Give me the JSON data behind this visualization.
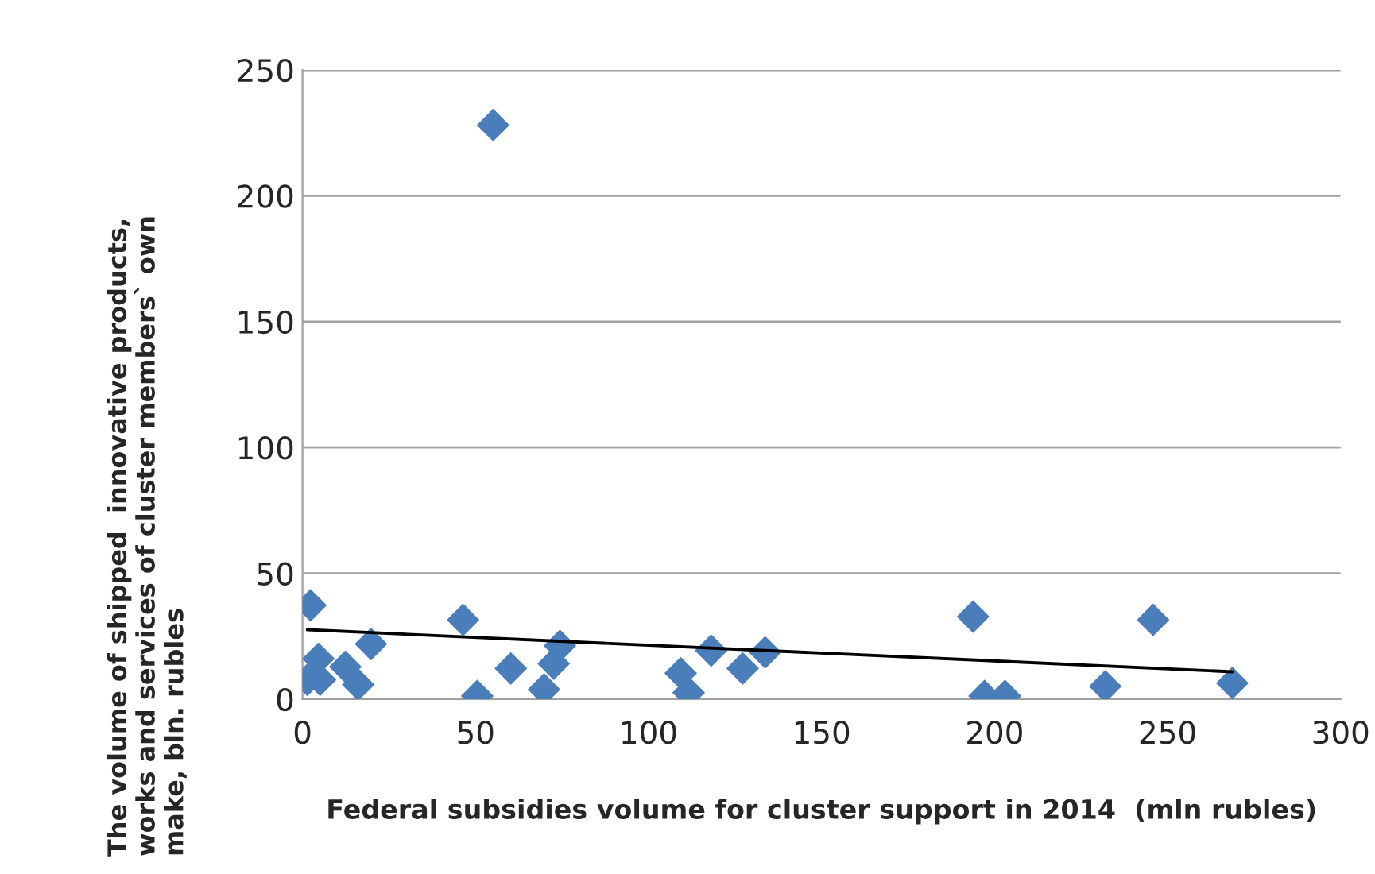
{
  "chart_data": {
    "type": "scatter",
    "xlabel": "Federal subsidies volume for cluster support in 2014  (mln rubles)",
    "ylabel": "The volume of shipped  innovative products,\nworks and services of cluster members` own\nmake, bln. rubles",
    "series": [
      {
        "color": "#4a7ebb",
        "marker": "diamond",
        "x": [
          2.3,
          4.6,
          1.4,
          5.1,
          12.4,
          16.1,
          19.8,
          46.4,
          50.5,
          55.1,
          60.2,
          69.8,
          72.6,
          74.4,
          109.3,
          111.6,
          118.1,
          127.2,
          133.7,
          193.8,
          197.1,
          203.0,
          232.0,
          245.8,
          268.7
        ],
        "values": [
          37.3,
          16.1,
          7.7,
          7.7,
          12.9,
          5.8,
          21.9,
          31.5,
          1.3,
          228.1,
          12.2,
          3.9,
          14.1,
          21.2,
          10.3,
          2.6,
          19.3,
          12.2,
          18.6,
          32.8,
          1.3,
          1.3,
          5.1,
          31.5,
          6.4
        ]
      },
      {
        "type": "line",
        "color": "#000000",
        "marker": "none",
        "x": [
          1.4,
          268.7
        ],
        "values": [
          27.6,
          10.9
        ]
      }
    ],
    "xlim": [
      0,
      300
    ],
    "xticks": [
      0,
      50,
      100,
      150,
      200,
      250,
      300
    ],
    "ylim": [
      0,
      250
    ],
    "yticks": [
      0,
      50,
      100,
      150,
      200,
      250
    ],
    "grid": "y"
  }
}
